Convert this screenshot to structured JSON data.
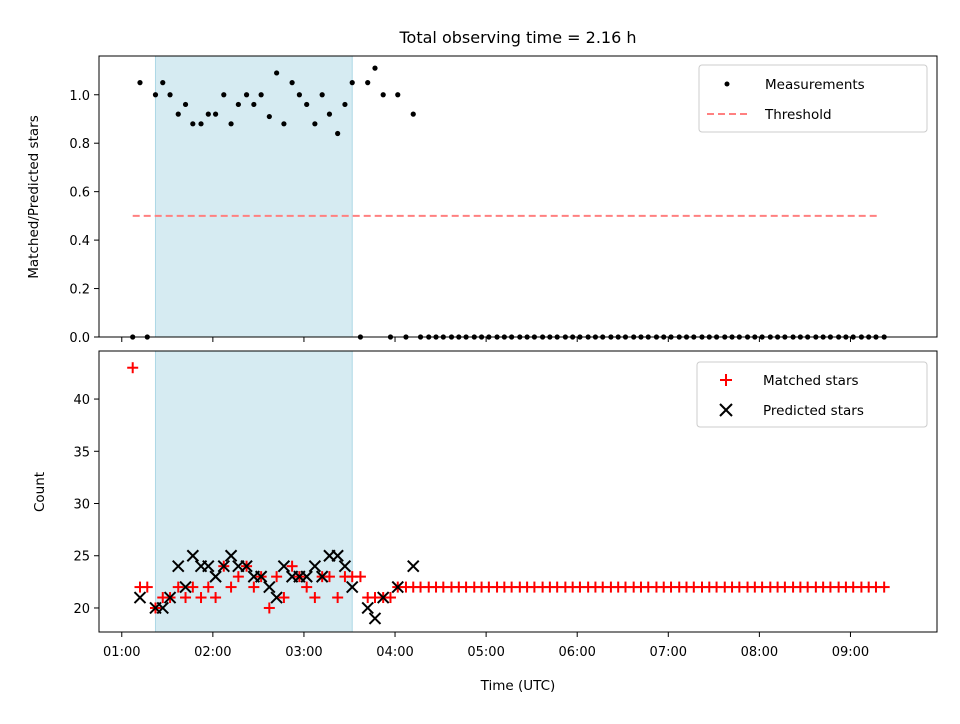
{
  "chart_data": {
    "type": "scatter",
    "title": "Total observing time = 2.16 h",
    "shared_x": {
      "label": "Time (UTC)",
      "range_hours": [
        0.75,
        9.95
      ],
      "ticks": [
        1,
        2,
        3,
        4,
        5,
        6,
        7,
        8,
        9
      ],
      "tick_labels": [
        "01:00",
        "02:00",
        "03:00",
        "04:00",
        "05:00",
        "06:00",
        "07:00",
        "08:00",
        "09:00"
      ]
    },
    "shaded_interval_hours": [
      1.37,
      3.53
    ],
    "shade_color": "#add8e6",
    "panels": [
      {
        "ylabel": "Matched/Predicted stars",
        "ylim": [
          0,
          1.16
        ],
        "yticks": [
          0,
          0.2,
          0.4,
          0.6,
          0.8,
          1.0
        ],
        "ytick_labels": [
          "0.0",
          "0.2",
          "0.4",
          "0.6",
          "0.8",
          "1.0"
        ],
        "legend": [
          {
            "label": "Measurements",
            "marker": "dot",
            "color": "#000000"
          },
          {
            "label": "Threshold",
            "marker": "dashed-line",
            "color": "#ff8080"
          }
        ],
        "threshold": {
          "y": 0.5,
          "x_start": 1.12,
          "x_end": 9.32
        },
        "ratio_x": [
          1.2,
          1.37,
          1.45,
          1.53,
          1.62,
          1.7,
          1.78,
          1.87,
          1.95,
          2.03,
          2.12,
          2.2,
          2.28,
          2.37,
          2.45,
          2.53,
          2.62,
          2.7,
          2.78,
          2.87,
          2.95,
          3.03,
          3.12,
          3.2,
          3.28,
          3.37,
          3.45,
          3.53,
          3.7,
          3.78,
          3.87,
          4.03,
          4.2
        ],
        "ratio_y": [
          1.05,
          1.0,
          1.05,
          1.0,
          0.92,
          0.96,
          0.88,
          0.88,
          0.92,
          0.92,
          1.0,
          0.88,
          0.96,
          1.0,
          0.96,
          1.0,
          0.91,
          1.09,
          0.88,
          1.05,
          1.0,
          0.96,
          0.88,
          1.0,
          0.92,
          0.84,
          0.96,
          1.05,
          1.05,
          1.11,
          1.0,
          1.0,
          0.92
        ],
        "zero_x": [
          1.12,
          1.28,
          3.62,
          3.95,
          4.12,
          4.28,
          4.37,
          4.45,
          4.53,
          4.62,
          4.7,
          4.78,
          4.87,
          4.95,
          5.03,
          5.12,
          5.2,
          5.28,
          5.37,
          5.45,
          5.53,
          5.62,
          5.7,
          5.78,
          5.87,
          5.95,
          6.03,
          6.12,
          6.2,
          6.28,
          6.37,
          6.45,
          6.53,
          6.62,
          6.7,
          6.78,
          6.87,
          6.95,
          7.03,
          7.12,
          7.2,
          7.28,
          7.37,
          7.45,
          7.53,
          7.62,
          7.7,
          7.78,
          7.87,
          7.95,
          8.03,
          8.12,
          8.2,
          8.28,
          8.37,
          8.45,
          8.53,
          8.62,
          8.7,
          8.78,
          8.87,
          8.95,
          9.03,
          9.12,
          9.2,
          9.28,
          9.37
        ]
      },
      {
        "ylabel": "Count",
        "ylim": [
          17.7,
          44.6
        ],
        "yticks": [
          20,
          25,
          30,
          35,
          40
        ],
        "ytick_labels": [
          "20",
          "25",
          "30",
          "35",
          "40"
        ],
        "legend": [
          {
            "label": "Matched stars",
            "marker": "plus",
            "color": "#ff0000"
          },
          {
            "label": "Predicted stars",
            "marker": "x",
            "color": "#000000"
          }
        ],
        "matched_x": [
          1.12,
          1.2,
          1.28,
          1.37,
          1.45,
          1.53,
          1.62,
          1.7,
          1.78,
          1.87,
          1.95,
          2.03,
          2.12,
          2.2,
          2.28,
          2.37,
          2.45,
          2.53,
          2.62,
          2.7,
          2.78,
          2.87,
          2.95,
          3.03,
          3.12,
          3.2,
          3.28,
          3.37,
          3.45,
          3.53,
          3.62,
          3.7,
          3.78,
          3.87,
          3.95,
          4.03,
          4.12,
          4.2,
          4.28,
          4.37,
          4.45,
          4.53,
          4.62,
          4.7,
          4.78,
          4.87,
          4.95,
          5.03,
          5.12,
          5.2,
          5.28,
          5.37,
          5.45,
          5.53,
          5.62,
          5.7,
          5.78,
          5.87,
          5.95,
          6.03,
          6.12,
          6.2,
          6.28,
          6.37,
          6.45,
          6.53,
          6.62,
          6.7,
          6.78,
          6.87,
          6.95,
          7.03,
          7.12,
          7.2,
          7.28,
          7.37,
          7.45,
          7.53,
          7.62,
          7.7,
          7.78,
          7.87,
          7.95,
          8.03,
          8.12,
          8.2,
          8.28,
          8.37,
          8.45,
          8.53,
          8.62,
          8.7,
          8.78,
          8.87,
          8.95,
          9.03,
          9.12,
          9.2,
          9.28,
          9.37
        ],
        "matched_y": [
          43,
          22,
          22,
          20,
          21,
          21,
          22,
          21,
          22,
          21,
          22,
          21,
          24,
          22,
          23,
          24,
          22,
          23,
          20,
          23,
          21,
          24,
          23,
          22,
          21,
          23,
          23,
          21,
          23,
          23,
          23,
          21,
          21,
          21,
          21,
          22,
          22,
          22,
          22,
          22,
          22,
          22,
          22,
          22,
          22,
          22,
          22,
          22,
          22,
          22,
          22,
          22,
          22,
          22,
          22,
          22,
          22,
          22,
          22,
          22,
          22,
          22,
          22,
          22,
          22,
          22,
          22,
          22,
          22,
          22,
          22,
          22,
          22,
          22,
          22,
          22,
          22,
          22,
          22,
          22,
          22,
          22,
          22,
          22,
          22,
          22,
          22,
          22,
          22,
          22,
          22,
          22,
          22,
          22,
          22,
          22,
          22,
          22,
          22,
          22
        ],
        "predicted_x": [
          1.2,
          1.37,
          1.45,
          1.53,
          1.62,
          1.7,
          1.78,
          1.87,
          1.95,
          2.03,
          2.12,
          2.2,
          2.28,
          2.37,
          2.45,
          2.53,
          2.62,
          2.7,
          2.78,
          2.87,
          2.95,
          3.03,
          3.12,
          3.2,
          3.28,
          3.37,
          3.45,
          3.53,
          3.7,
          3.78,
          3.87,
          4.03,
          4.2
        ],
        "predicted_y": [
          21,
          20,
          20,
          21,
          24,
          22,
          25,
          24,
          24,
          23,
          24,
          25,
          24,
          24,
          23,
          23,
          22,
          21,
          24,
          23,
          23,
          23,
          24,
          23,
          25,
          25,
          24,
          22,
          20,
          19,
          21,
          22,
          24
        ]
      }
    ]
  }
}
